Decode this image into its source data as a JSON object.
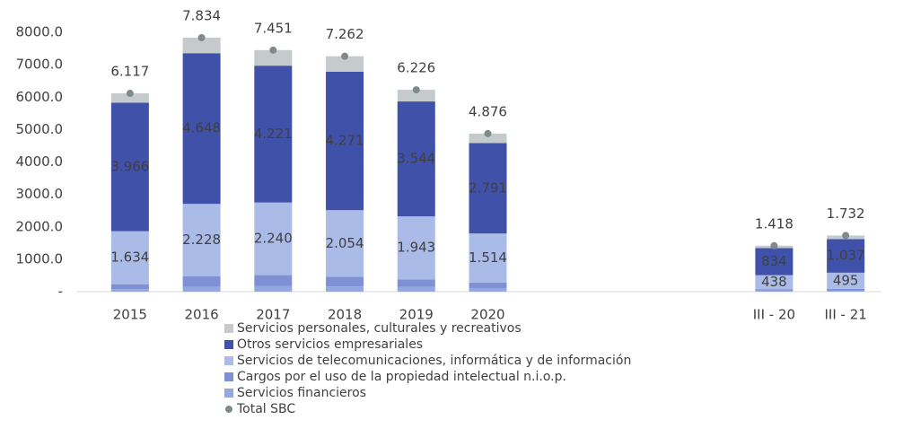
{
  "chart_data": {
    "type": "stacked_bar",
    "categories": [
      "2015",
      "2016",
      "2017",
      "2018",
      "2019",
      "2020",
      null,
      null,
      null,
      "III - 20",
      "III - 21"
    ],
    "series": [
      {
        "name": "Servicios personales, culturales y recreativos",
        "color": "#c5cacd",
        "values": [
          287,
          478,
          480,
          477,
          359,
          291,
          null,
          null,
          null,
          76,
          110
        ]
      },
      {
        "name": "Otros servicios empresariales",
        "color": "#3f51a8",
        "values": [
          3966,
          4648,
          4221,
          4271,
          3544,
          2791,
          null,
          null,
          null,
          834,
          1037
        ],
        "value_labels": [
          "3.966",
          "4.648",
          "4.221",
          "4.271",
          "3.544",
          "2.791",
          null,
          null,
          null,
          "834",
          "1.037"
        ]
      },
      {
        "name": "Servicios de telecomunicaciones, informática y de información",
        "color": "#abbbe8",
        "values": [
          1634,
          2228,
          2240,
          2054,
          1943,
          1514,
          null,
          null,
          null,
          438,
          495
        ],
        "value_labels": [
          "1.634",
          "2.228",
          "2.240",
          "2.054",
          "1.943",
          "1.514",
          null,
          null,
          null,
          "438",
          "495"
        ]
      },
      {
        "name": "Cargos por el uso de la propiedad intelectual n.i.o.p.",
        "color": "#7f90d4",
        "values": [
          150,
          330,
          330,
          300,
          230,
          180,
          null,
          null,
          null,
          40,
          60
        ]
      },
      {
        "name": "Servicios financieros",
        "color": "#93a8de",
        "values": [
          80,
          150,
          180,
          160,
          150,
          100,
          null,
          null,
          null,
          30,
          30
        ]
      }
    ],
    "total": {
      "name": "Total SBC",
      "color": "#7f8a8e",
      "values": [
        6117,
        7834,
        7451,
        7262,
        6226,
        4876,
        null,
        null,
        null,
        1418,
        1732
      ],
      "value_labels": [
        "6.117",
        "7.834",
        "7.451",
        "7.262",
        "6.226",
        "4.876",
        null,
        null,
        null,
        "1.418",
        "1.732"
      ]
    },
    "ylim": [
      0,
      8000
    ],
    "yticks": [
      {
        "value": 0,
        "label": "-"
      },
      {
        "value": 1000,
        "label": "1000.0"
      },
      {
        "value": 2000,
        "label": "2000.0"
      },
      {
        "value": 3000,
        "label": "3000.0"
      },
      {
        "value": 4000,
        "label": "4000.0"
      },
      {
        "value": 5000,
        "label": "5000.0"
      },
      {
        "value": 6000,
        "label": "6000.0"
      },
      {
        "value": 7000,
        "label": "7000.0"
      },
      {
        "value": 8000,
        "label": "8000.0"
      }
    ],
    "grid": false,
    "legend": "bottom"
  }
}
